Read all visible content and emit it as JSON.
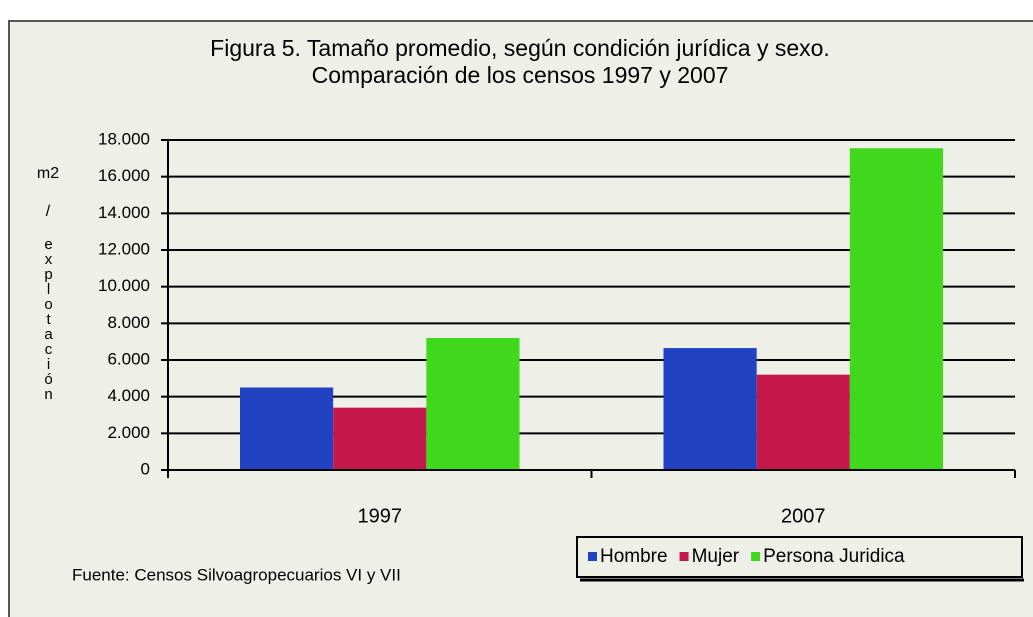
{
  "chart_data": {
    "type": "bar",
    "title": [
      "Figura 5. Tamaño promedio, según condición jurídica y sexo.",
      "Comparación de los censos 1997 y 2007"
    ],
    "y_label": [
      "m2",
      "/",
      "explotación"
    ],
    "categories": [
      "1997",
      "2007"
    ],
    "series": [
      {
        "name": "Hombre",
        "color": "#2242c4",
        "values": [
          4500,
          6650
        ]
      },
      {
        "name": "Mujer",
        "color": "#c4174c",
        "values": [
          3400,
          5200
        ]
      },
      {
        "name": "Persona Juridica",
        "color": "#3fd81c",
        "values": [
          7200,
          17550
        ]
      }
    ],
    "ylim": [
      0,
      18000
    ],
    "yticks": [
      0,
      {
        "value": 2000,
        "label": "2.000"
      },
      {
        "value": 4000,
        "label": "4.000"
      },
      {
        "value": 6000,
        "label": "6.000"
      },
      {
        "value": 8000,
        "label": "8.000"
      },
      {
        "value": 10000,
        "label": "10.000"
      },
      {
        "value": 12000,
        "label": "12.000"
      },
      {
        "value": 14000,
        "label": "14.000"
      },
      {
        "value": 16000,
        "label": "16.000"
      },
      {
        "value": 18000,
        "label": "18.000"
      }
    ],
    "grid": true,
    "legend": "bottom-right",
    "note": "Fuente: Censos Silvoagropecuarios VI y VII"
  }
}
